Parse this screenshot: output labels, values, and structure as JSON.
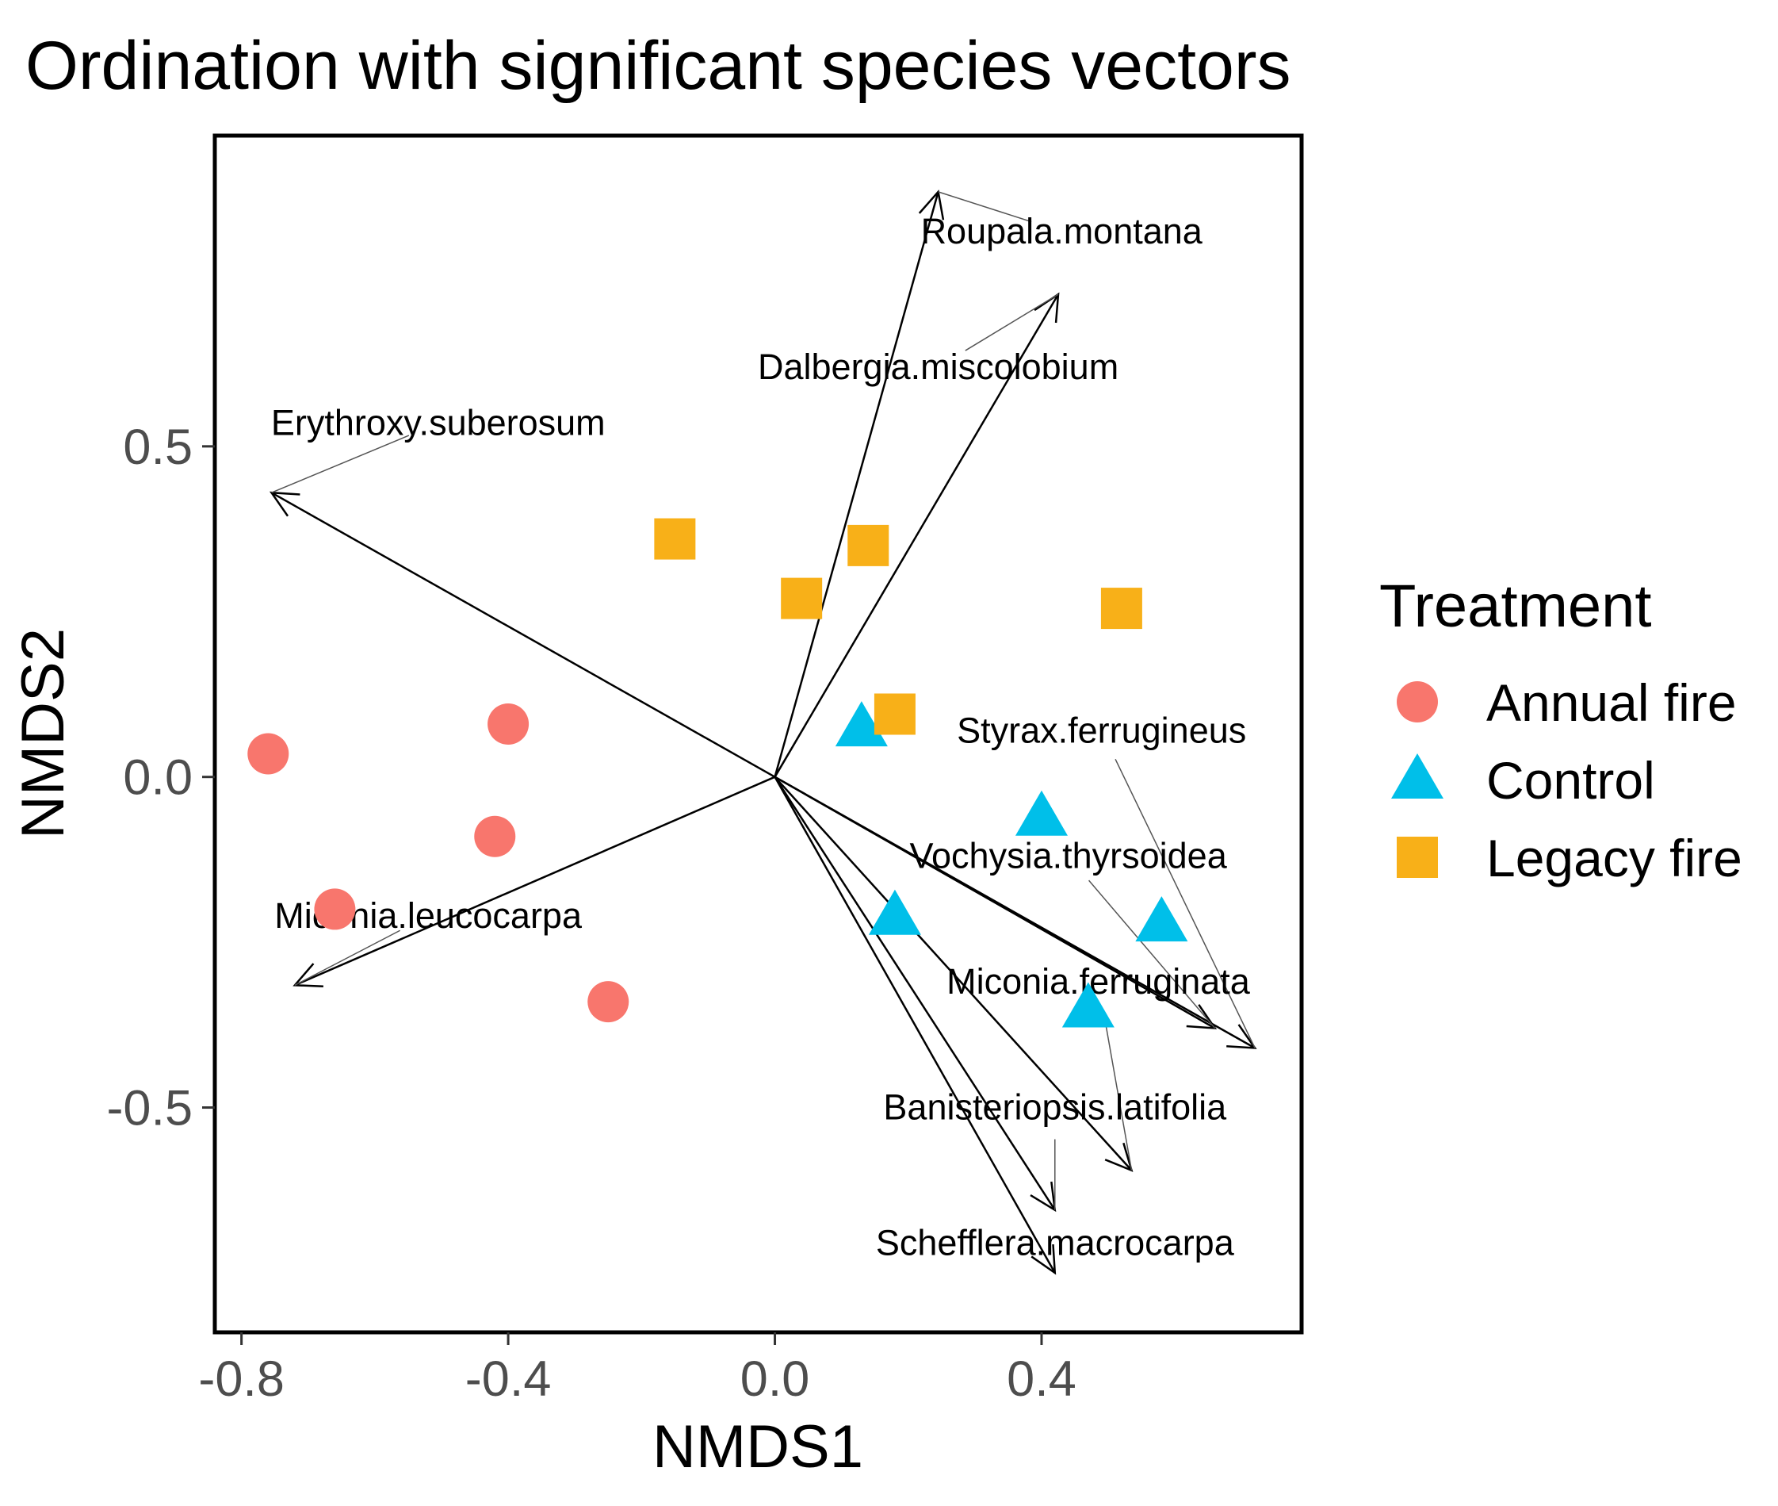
{
  "chart_data": {
    "type": "scatter",
    "title": "Ordination with significant species vectors",
    "xlabel": "NMDS1",
    "ylabel": "NMDS2",
    "xlim": [
      -0.84,
      0.79
    ],
    "ylim": [
      -0.84,
      0.97
    ],
    "xticks": [
      -0.8,
      -0.4,
      0.0,
      0.4
    ],
    "xtick_labels": [
      "-0.8",
      "-0.4",
      "0.0",
      "0.4"
    ],
    "yticks": [
      -0.5,
      0.0,
      0.5
    ],
    "ytick_labels": [
      "-0.5",
      "0.0",
      "0.5"
    ],
    "grid": false,
    "legend": {
      "title": "Treatment",
      "position": "right",
      "entries": [
        {
          "label": "Annual fire",
          "shape": "circle",
          "color": "#F8766D"
        },
        {
          "label": "Control",
          "shape": "triangle",
          "color": "#00BFE9"
        },
        {
          "label": "Legacy fire",
          "shape": "square",
          "color": "#F8B018"
        }
      ]
    },
    "series": [
      {
        "name": "Annual fire",
        "points": [
          {
            "x": -0.76,
            "y": 0.035
          },
          {
            "x": -0.4,
            "y": 0.08
          },
          {
            "x": -0.42,
            "y": -0.09
          },
          {
            "x": -0.66,
            "y": -0.2
          },
          {
            "x": -0.25,
            "y": -0.34
          }
        ]
      },
      {
        "name": "Control",
        "points": [
          {
            "x": 0.13,
            "y": 0.075
          },
          {
            "x": 0.4,
            "y": -0.06
          },
          {
            "x": 0.18,
            "y": -0.21
          },
          {
            "x": 0.58,
            "y": -0.22
          },
          {
            "x": 0.47,
            "y": -0.35
          }
        ]
      },
      {
        "name": "Legacy fire",
        "points": [
          {
            "x": -0.15,
            "y": 0.36
          },
          {
            "x": 0.14,
            "y": 0.35
          },
          {
            "x": 0.04,
            "y": 0.27
          },
          {
            "x": 0.52,
            "y": 0.255
          },
          {
            "x": 0.18,
            "y": 0.095
          }
        ]
      }
    ],
    "vectors": [
      {
        "species": "Roupala.montana",
        "x": 0.245,
        "y": 0.885,
        "label_x": 0.43,
        "label_y": 0.825
      },
      {
        "species": "Dalbergia.miscolobium",
        "x": 0.425,
        "y": 0.73,
        "label_x": 0.245,
        "label_y": 0.62
      },
      {
        "species": "Erythroxy.suberosum",
        "x": -0.755,
        "y": 0.43,
        "label_x": -0.505,
        "label_y": 0.535
      },
      {
        "species": "Miconia.leucocarpa",
        "x": -0.72,
        "y": -0.315,
        "label_x": -0.52,
        "label_y": -0.21
      },
      {
        "species": "Styrax.ferrugineus",
        "x": 0.72,
        "y": -0.41,
        "label_x": 0.49,
        "label_y": 0.07
      },
      {
        "species": "Vochysia.thyrsoidea",
        "x": 0.66,
        "y": -0.38,
        "label_x": 0.44,
        "label_y": -0.12
      },
      {
        "species": "Miconia.ferruginata",
        "x": 0.535,
        "y": -0.595,
        "label_x": 0.485,
        "label_y": -0.31
      },
      {
        "species": "Banisteriopsis.latifolia",
        "x": 0.42,
        "y": -0.655,
        "label_x": 0.42,
        "label_y": -0.5
      },
      {
        "species": "Schefflera.macrocarpa",
        "x": 0.42,
        "y": -0.75,
        "label_x": 0.42,
        "label_y": -0.705
      }
    ]
  }
}
